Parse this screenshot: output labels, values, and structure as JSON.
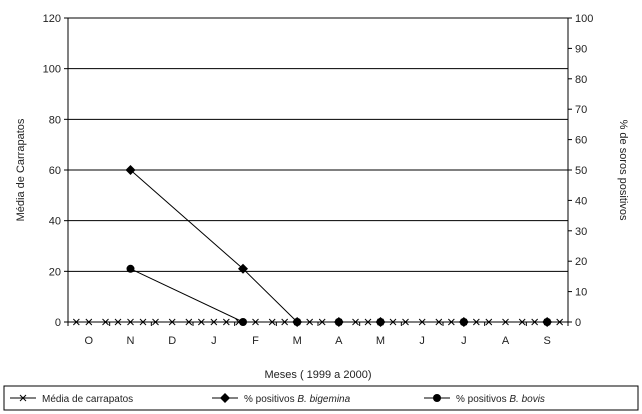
{
  "chart_data": {
    "type": "line",
    "categories": [
      "O",
      "N",
      "D",
      "J",
      "F",
      "M",
      "A",
      "M",
      "J",
      "J",
      "A",
      "S"
    ],
    "xlabel": "Meses ( 1999 a 2000)",
    "ylabel": "Média de Carrapatos",
    "y2label": "% de soros positivos",
    "ylim": [
      0,
      120
    ],
    "y_ticks": [
      0,
      20,
      40,
      60,
      80,
      100,
      120
    ],
    "y2lim": [
      0,
      100
    ],
    "y2_ticks": [
      0,
      10,
      20,
      30,
      40,
      50,
      60,
      70,
      80,
      90,
      100
    ],
    "x_range": [
      0,
      12
    ],
    "category_positions": [
      0.5,
      1.5,
      2.5,
      3.5,
      4.5,
      5.5,
      6.5,
      7.5,
      8.5,
      9.5,
      10.5,
      11.5
    ],
    "grid": "horizontal",
    "legend_position": "bottom",
    "series": [
      {
        "name": "Média de carrapatos",
        "axis": "left",
        "marker": "star",
        "x": [
          0.2,
          0.5,
          0.9,
          1.2,
          1.5,
          1.8,
          2.1,
          2.5,
          2.9,
          3.2,
          3.5,
          3.8,
          4.1,
          4.5,
          4.9,
          5.2,
          5.5,
          5.8,
          6.1,
          6.5,
          6.9,
          7.2,
          7.5,
          7.8,
          8.1,
          8.5,
          8.9,
          9.2,
          9.5,
          9.8,
          10.1,
          10.5,
          10.9,
          11.2,
          11.5,
          11.8
        ],
        "y": [
          0,
          0,
          0,
          0,
          0,
          0,
          0,
          0,
          0,
          0,
          0,
          0,
          0,
          0,
          0,
          0,
          0,
          0,
          0,
          0,
          0,
          0,
          0,
          0,
          0,
          0,
          0,
          0,
          0,
          0,
          0,
          0,
          0,
          0,
          0,
          0
        ]
      },
      {
        "name_prefix": "% positivos ",
        "name_italic": "B. bigemina",
        "axis": "right",
        "marker": "diamond",
        "x": [
          1.5,
          4.2,
          5.5,
          6.5,
          7.5,
          9.5,
          11.5
        ],
        "y": [
          50,
          17.5,
          0,
          0,
          0,
          0,
          0
        ]
      },
      {
        "name_prefix": "% positivos ",
        "name_italic": "B. bovis",
        "axis": "right",
        "marker": "circle",
        "x": [
          1.5,
          4.2,
          5.5,
          6.5,
          7.5,
          9.5,
          11.5
        ],
        "y": [
          17.5,
          0,
          0,
          0,
          0,
          0,
          0
        ]
      }
    ]
  }
}
